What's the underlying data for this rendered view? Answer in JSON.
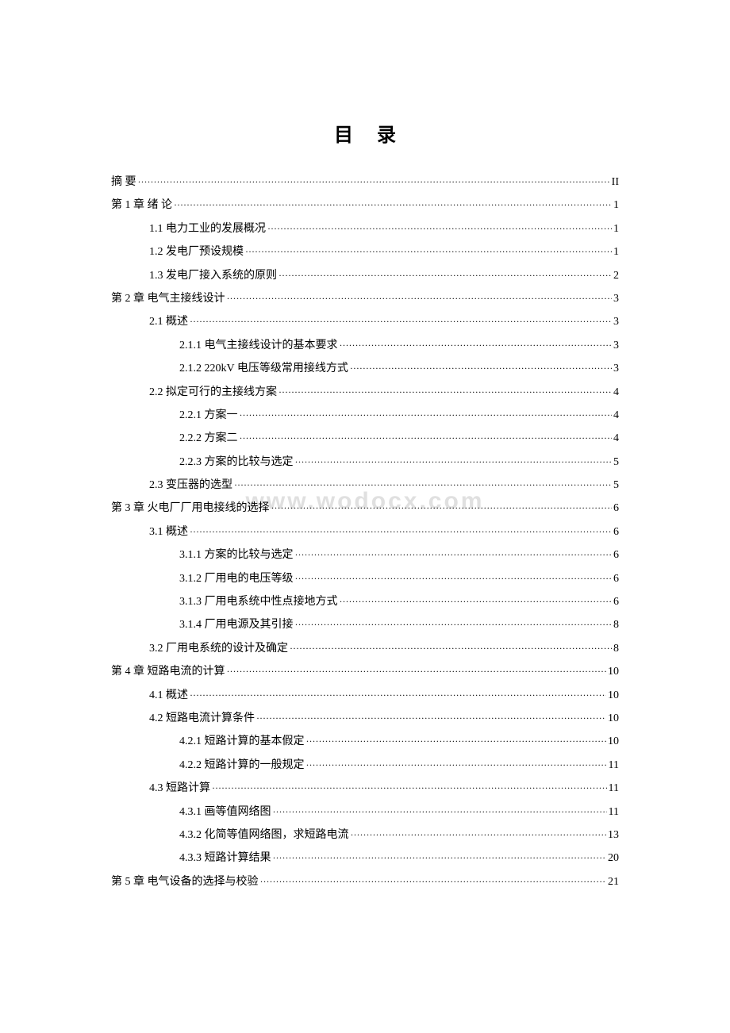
{
  "title": "目录",
  "watermark": "www.wodocx.com",
  "toc": [
    {
      "label": "摘        要",
      "page": "II",
      "level": 0
    },
    {
      "label": "第 1 章  绪  论",
      "page": "1",
      "level": 0
    },
    {
      "label": "1.1  电力工业的发展概况",
      "page": "1",
      "level": 1
    },
    {
      "label": "1.2  发电厂预设规模",
      "page": "1",
      "level": 1
    },
    {
      "label": "1.3  发电厂接入系统的原则",
      "page": "2",
      "level": 1
    },
    {
      "label": "第 2 章  电气主接线设计",
      "page": "3",
      "level": 0
    },
    {
      "label": "2.1  概述",
      "page": "3",
      "level": 1
    },
    {
      "label": "2.1.1  电气主接线设计的基本要求",
      "page": "3",
      "level": 2
    },
    {
      "label": "2.1.2 220kV 电压等级常用接线方式",
      "page": "3",
      "level": 2
    },
    {
      "label": "2.2  拟定可行的主接线方案",
      "page": "4",
      "level": 1
    },
    {
      "label": "2.2.1  方案一",
      "page": "4",
      "level": 2
    },
    {
      "label": "2.2.2  方案二",
      "page": "4",
      "level": 2
    },
    {
      "label": "2.2.3  方案的比较与选定",
      "page": "5",
      "level": 2
    },
    {
      "label": "2.3  变压器的选型",
      "page": "5",
      "level": 1
    },
    {
      "label": "第 3 章  火电厂厂用电接线的选择",
      "page": "6",
      "level": 0
    },
    {
      "label": "3.1  概述",
      "page": "6",
      "level": 1
    },
    {
      "label": "3.1.1  方案的比较与选定",
      "page": "6",
      "level": 2
    },
    {
      "label": "3.1.2  厂用电的电压等级",
      "page": "6",
      "level": 2
    },
    {
      "label": "3.1.3  厂用电系统中性点接地方式",
      "page": "6",
      "level": 2
    },
    {
      "label": "3.1.4  厂用电源及其引接",
      "page": "8",
      "level": 2
    },
    {
      "label": "3.2  厂用电系统的设计及确定",
      "page": "8",
      "level": 1
    },
    {
      "label": "第 4 章  短路电流的计算",
      "page": "10",
      "level": 0
    },
    {
      "label": "4.1  概述",
      "page": "10",
      "level": 1
    },
    {
      "label": "4.2  短路电流计算条件",
      "page": "10",
      "level": 1
    },
    {
      "label": "4.2.1  短路计算的基本假定",
      "page": "10",
      "level": 2
    },
    {
      "label": "4.2.2  短路计算的一般规定",
      "page": "11",
      "level": 2
    },
    {
      "label": "4.3  短路计算",
      "page": "11",
      "level": 1
    },
    {
      "label": "4.3.1  画等值网络图",
      "page": "11",
      "level": 2
    },
    {
      "label": "4.3.2  化简等值网络图，求短路电流",
      "page": "13",
      "level": 2
    },
    {
      "label": "4.3.3  短路计算结果",
      "page": "20",
      "level": 2
    },
    {
      "label": "第 5 章  电气设备的选择与校验",
      "page": "21",
      "level": 0
    }
  ]
}
